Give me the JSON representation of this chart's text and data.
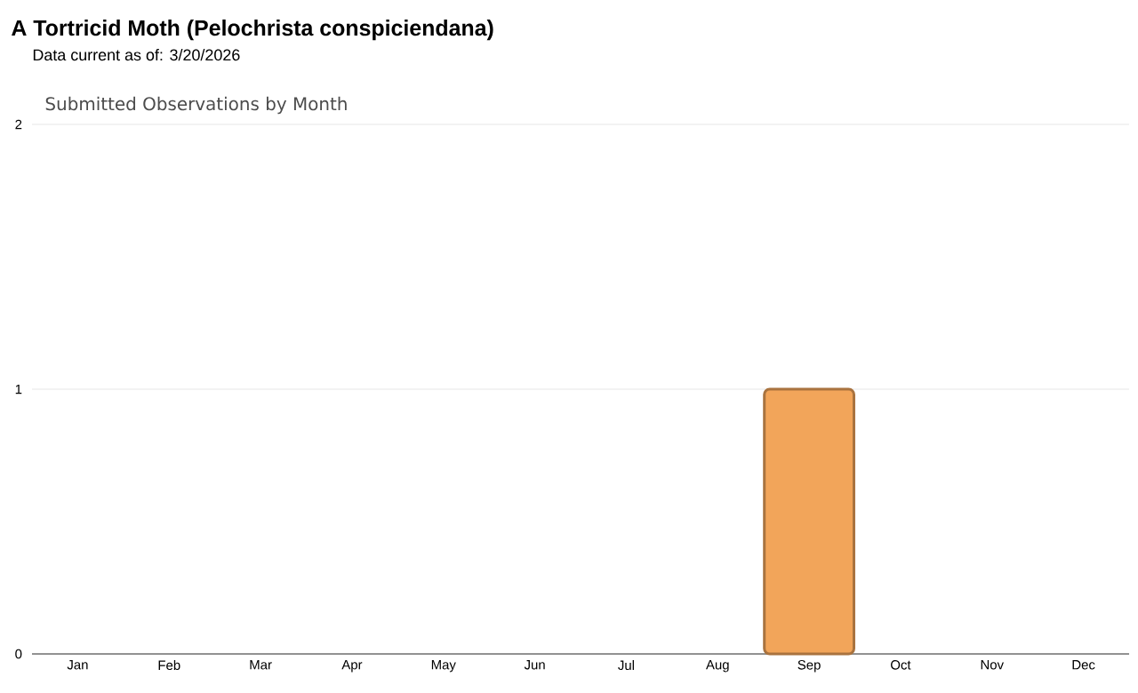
{
  "chart_data": {
    "type": "bar",
    "title": "A Tortricid Moth (Pelochrista conspiciendana)",
    "subtitle": "Data current as of: 3/20/2026",
    "annotations": [
      "Submitted Observations by Month"
    ],
    "categories": [
      "Jan",
      "Feb",
      "Mar",
      "Apr",
      "May",
      "Jun",
      "Jul",
      "Aug",
      "Sep",
      "Oct",
      "Nov",
      "Dec"
    ],
    "values": [
      0,
      0,
      0,
      0,
      0,
      0,
      0,
      0,
      1,
      0,
      0,
      0
    ],
    "color": "#f2a55a",
    "ylim": [
      0,
      2
    ],
    "yticks": [
      0,
      1,
      2
    ],
    "grid": "y"
  }
}
